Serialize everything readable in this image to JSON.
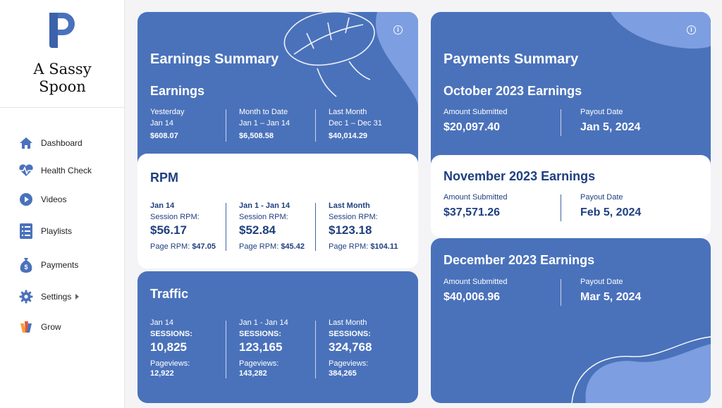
{
  "brand": {
    "name_line1": "A Sassy",
    "name_line2": "Spoon"
  },
  "nav": [
    {
      "label": "Dashboard",
      "icon": "home-icon"
    },
    {
      "label": "Health Check",
      "icon": "heartbeat-icon"
    },
    {
      "label": "Videos",
      "icon": "play-icon"
    },
    {
      "label": "Playlists",
      "icon": "list-icon"
    },
    {
      "label": "Payments",
      "icon": "money-bag-icon"
    },
    {
      "label": "Settings",
      "icon": "gear-icon"
    },
    {
      "label": "Grow",
      "icon": "grow-icon"
    }
  ],
  "earnings": {
    "title": "Earnings Summary",
    "subtitle": "Earnings",
    "cols": [
      {
        "label": "Yesterday",
        "range": "Jan 14",
        "value": "$608.07"
      },
      {
        "label": "Month to Date",
        "range": "Jan 1 – Jan 14",
        "value": "$6,508.58"
      },
      {
        "label": "Last Month",
        "range": "Dec 1 – Dec 31",
        "value": "$40,014.29"
      }
    ]
  },
  "rpm": {
    "title": "RPM",
    "cols": [
      {
        "range": "Jan 14",
        "session_label": "Session RPM:",
        "session_value": "$56.17",
        "page_label": "Page RPM:",
        "page_value": "$47.05"
      },
      {
        "range": "Jan 1 - Jan 14",
        "session_label": "Session RPM:",
        "session_value": "$52.84",
        "page_label": "Page RPM:",
        "page_value": "$45.42"
      },
      {
        "range": "Last Month",
        "session_label": "Session RPM:",
        "session_value": "$123.18",
        "page_label": "Page RPM:",
        "page_value": "$104.11"
      }
    ]
  },
  "traffic": {
    "title": "Traffic",
    "cols": [
      {
        "range": "Jan 14",
        "sessions_label": "SESSIONS:",
        "sessions_value": "10,825",
        "pv_label": "Pageviews:",
        "pv_value": "12,922"
      },
      {
        "range": "Jan 1 - Jan 14",
        "sessions_label": "SESSIONS:",
        "sessions_value": "123,165",
        "pv_label": "Pageviews:",
        "pv_value": "143,282"
      },
      {
        "range": "Last Month",
        "sessions_label": "SESSIONS:",
        "sessions_value": "324,768",
        "pv_label": "Pageviews:",
        "pv_value": "384,265"
      }
    ]
  },
  "payments": {
    "title": "Payments Summary",
    "months": [
      {
        "title": "October 2023 Earnings",
        "amount_label": "Amount Submitted",
        "amount": "$20,097.40",
        "payout_label": "Payout Date",
        "payout": "Jan 5, 2024"
      },
      {
        "title": "November 2023 Earnings",
        "amount_label": "Amount Submitted",
        "amount": "$37,571.26",
        "payout_label": "Payout Date",
        "payout": "Feb 5, 2024"
      },
      {
        "title": "December 2023 Earnings",
        "amount_label": "Amount Submitted",
        "amount": "$40,006.96",
        "payout_label": "Payout Date",
        "payout": "Mar 5, 2024"
      }
    ]
  },
  "colors": {
    "primary": "#4a72bb",
    "primary_dark": "#1f3f7f",
    "accent_light": "#7d9ee0"
  }
}
